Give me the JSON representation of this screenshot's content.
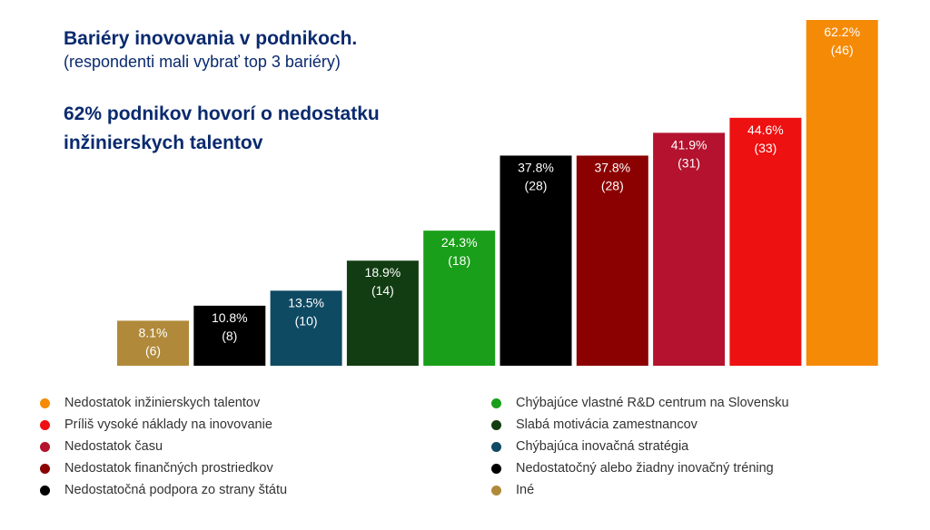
{
  "chart_data": {
    "type": "bar",
    "title": "Bariéry inovovania v podnikoch.",
    "subtitle": "(respondenti mali vybrať top 3 bariéry)",
    "headline": "62% podnikov hovorí o nedostatku inžinierskych talentov",
    "categories": [
      "Iné",
      "Nedostatočný alebo žiadny inovačný tréning",
      "Chýbajúca inovačná stratégia",
      "Slabá motivácia zamestnancov",
      "Chýbajúce vlastné R&D centrum na Slovensku",
      "Nedostatočná podpora zo strany štátu",
      "Nedostatok finančných prostriedkov",
      "Nedostatok času",
      "Príliš vysoké náklady na inovovanie",
      "Nedostatok inžinierskych talentov"
    ],
    "values": [
      8.1,
      10.8,
      13.5,
      18.9,
      24.3,
      37.8,
      37.8,
      41.9,
      44.6,
      62.2
    ],
    "counts": [
      6,
      8,
      10,
      14,
      18,
      28,
      28,
      31,
      33,
      46
    ],
    "value_labels": [
      "8.1%",
      "10.8%",
      "13.5%",
      "18.9%",
      "24.3%",
      "37.8%",
      "37.8%",
      "41.9%",
      "44.6%",
      "62.2%"
    ],
    "count_labels": [
      "(6)",
      "(8)",
      "(10)",
      "(14)",
      "(18)",
      "(28)",
      "(28)",
      "(31)",
      "(33)",
      "(46)"
    ],
    "colors": [
      "#b08a3a",
      "#000000",
      "#0f4a63",
      "#123d12",
      "#1a9f1a",
      "#000000",
      "#8b0000",
      "#b4122e",
      "#ee1111",
      "#f58a07"
    ],
    "ylim": [
      0,
      62.2
    ],
    "grid": false,
    "legend_position": "bottom",
    "legend": {
      "left": [
        {
          "label": "Nedostatok inžinierskych talentov",
          "color": "#f58a07"
        },
        {
          "label": "Príliš vysoké náklady na inovovanie",
          "color": "#ee1111"
        },
        {
          "label": "Nedostatok času",
          "color": "#b4122e"
        },
        {
          "label": "Nedostatok finančných prostriedkov",
          "color": "#8b0000"
        },
        {
          "label": "Nedostatočná podpora zo strany štátu",
          "color": "#000000"
        }
      ],
      "right": [
        {
          "label": "Chýbajúce vlastné R&D centrum na Slovensku",
          "color": "#1a9f1a"
        },
        {
          "label": "Slabá motivácia zamestnancov",
          "color": "#123d12"
        },
        {
          "label": "Chýbajúca inovačná stratégia",
          "color": "#0f4a63"
        },
        {
          "label": "Nedostatočný alebo žiadny inovačný tréning",
          "color": "#000000"
        },
        {
          "label": "Iné",
          "color": "#b08a3a"
        }
      ]
    }
  }
}
